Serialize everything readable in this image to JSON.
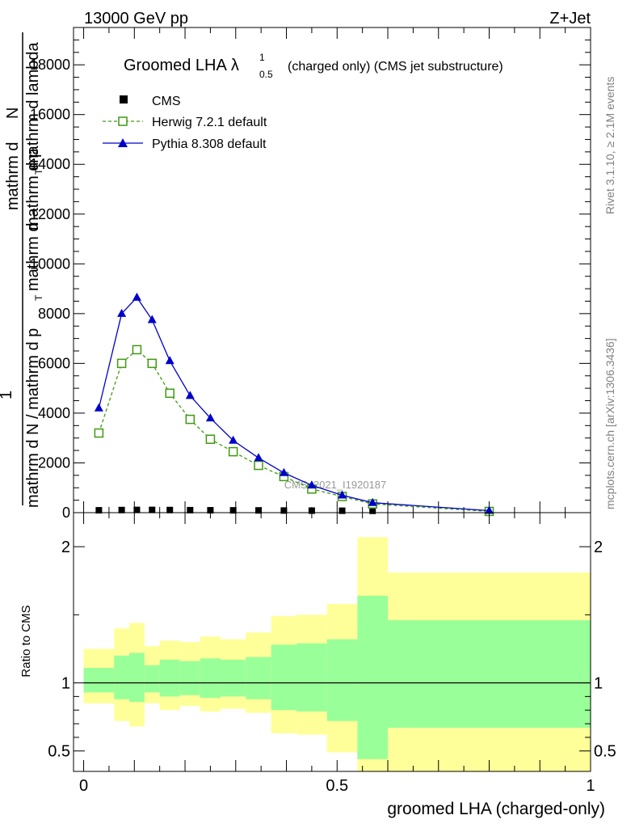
{
  "header": {
    "left": "13000 GeV pp",
    "right": "Z+Jet"
  },
  "side_labels": {
    "rivet": "Rivet 3.1.10, ≥ 2.1M events",
    "mcplots": "mcplots.cern.ch [arXiv:1306.3436]"
  },
  "chart_data": [
    {
      "type": "line",
      "title_main": "Groomed LHA",
      "title_symbol": "λ",
      "title_sup": "1",
      "title_sub": "0.5",
      "title_rest": "(charged only) (CMS jet substructure)",
      "ylabel_parts": [
        "mathrm d",
        "N",
        "mathrm d p",
        "T",
        "mathrm d lambda",
        "1",
        "mathrm d N / mathrm d p",
        "T",
        "mathrm d"
      ],
      "watermark": "CMS_2021_I1920187",
      "ylim": [
        0,
        19500
      ],
      "xlim": [
        -0.02,
        1.0
      ],
      "y_ticks": [
        0,
        2000,
        4000,
        6000,
        8000,
        10000,
        12000,
        14000,
        16000,
        18000
      ],
      "y_tick_labels": [
        "0",
        "2000",
        "4000",
        "6000",
        "8000",
        "10000",
        "12000",
        "14000",
        "16000",
        "18000"
      ],
      "legend_position": "top-left",
      "x": [
        0.03,
        0.075,
        0.105,
        0.135,
        0.17,
        0.21,
        0.25,
        0.295,
        0.345,
        0.395,
        0.45,
        0.51,
        0.57,
        0.8
      ],
      "series": [
        {
          "name": "CMS",
          "color": "#000000",
          "marker": "square-filled",
          "values": [
            30,
            40,
            45,
            45,
            40,
            35,
            30,
            28,
            25,
            20,
            15,
            12,
            8,
            5
          ]
        },
        {
          "name": "Herwig 7.2.1 default",
          "color": "#3e9a0f",
          "marker": "square-open",
          "dashed": true,
          "values": [
            3200,
            6000,
            6550,
            6000,
            4800,
            3750,
            2950,
            2450,
            1900,
            1450,
            950,
            650,
            350,
            50
          ]
        },
        {
          "name": "Pythia 8.308 default",
          "color": "#0000cc",
          "marker": "triangle-filled",
          "values": [
            4200,
            8000,
            8650,
            7750,
            6100,
            4700,
            3800,
            2900,
            2200,
            1600,
            1100,
            700,
            400,
            80
          ]
        }
      ]
    },
    {
      "type": "area",
      "ylabel": "Ratio to CMS",
      "xlabel": "groomed LHA (charged-only)",
      "ylim": [
        0.35,
        2.25
      ],
      "xlim": [
        -0.02,
        1.0
      ],
      "x_ticks": [
        0,
        0.5,
        1
      ],
      "x_tick_labels": [
        "0",
        "0.5",
        "1"
      ],
      "y_ticks": [
        0.5,
        1,
        2
      ],
      "y_tick_labels": [
        "0.5",
        "1",
        "2"
      ],
      "band_colors": {
        "outer": "#ffff99",
        "inner": "#99ff99"
      },
      "bins": [
        {
          "lo": 0.0,
          "hi": 0.06,
          "outer": [
            0.85,
            1.25
          ],
          "inner": [
            0.93,
            1.11
          ]
        },
        {
          "lo": 0.06,
          "hi": 0.09,
          "outer": [
            0.72,
            1.4
          ],
          "inner": [
            0.88,
            1.2
          ]
        },
        {
          "lo": 0.09,
          "hi": 0.12,
          "outer": [
            0.68,
            1.44
          ],
          "inner": [
            0.86,
            1.22
          ]
        },
        {
          "lo": 0.12,
          "hi": 0.15,
          "outer": [
            0.85,
            1.27
          ],
          "inner": [
            0.93,
            1.13
          ]
        },
        {
          "lo": 0.15,
          "hi": 0.19,
          "outer": [
            0.8,
            1.31
          ],
          "inner": [
            0.9,
            1.17
          ]
        },
        {
          "lo": 0.19,
          "hi": 0.23,
          "outer": [
            0.83,
            1.3
          ],
          "inner": [
            0.91,
            1.16
          ]
        },
        {
          "lo": 0.23,
          "hi": 0.27,
          "outer": [
            0.79,
            1.34
          ],
          "inner": [
            0.89,
            1.18
          ]
        },
        {
          "lo": 0.27,
          "hi": 0.32,
          "outer": [
            0.81,
            1.32
          ],
          "inner": [
            0.9,
            1.17
          ]
        },
        {
          "lo": 0.32,
          "hi": 0.37,
          "outer": [
            0.78,
            1.37
          ],
          "inner": [
            0.88,
            1.19
          ]
        },
        {
          "lo": 0.37,
          "hi": 0.42,
          "outer": [
            0.63,
            1.49
          ],
          "inner": [
            0.8,
            1.28
          ]
        },
        {
          "lo": 0.42,
          "hi": 0.48,
          "outer": [
            0.62,
            1.5
          ],
          "inner": [
            0.79,
            1.29
          ]
        },
        {
          "lo": 0.48,
          "hi": 0.54,
          "outer": [
            0.49,
            1.58
          ],
          "inner": [
            0.72,
            1.32
          ]
        },
        {
          "lo": 0.54,
          "hi": 0.6,
          "outer": [
            0.35,
            2.07
          ],
          "inner": [
            0.44,
            1.64
          ]
        },
        {
          "lo": 0.6,
          "hi": 1.0,
          "outer": [
            0.35,
            1.81
          ],
          "inner": [
            0.67,
            1.46
          ]
        }
      ]
    }
  ]
}
